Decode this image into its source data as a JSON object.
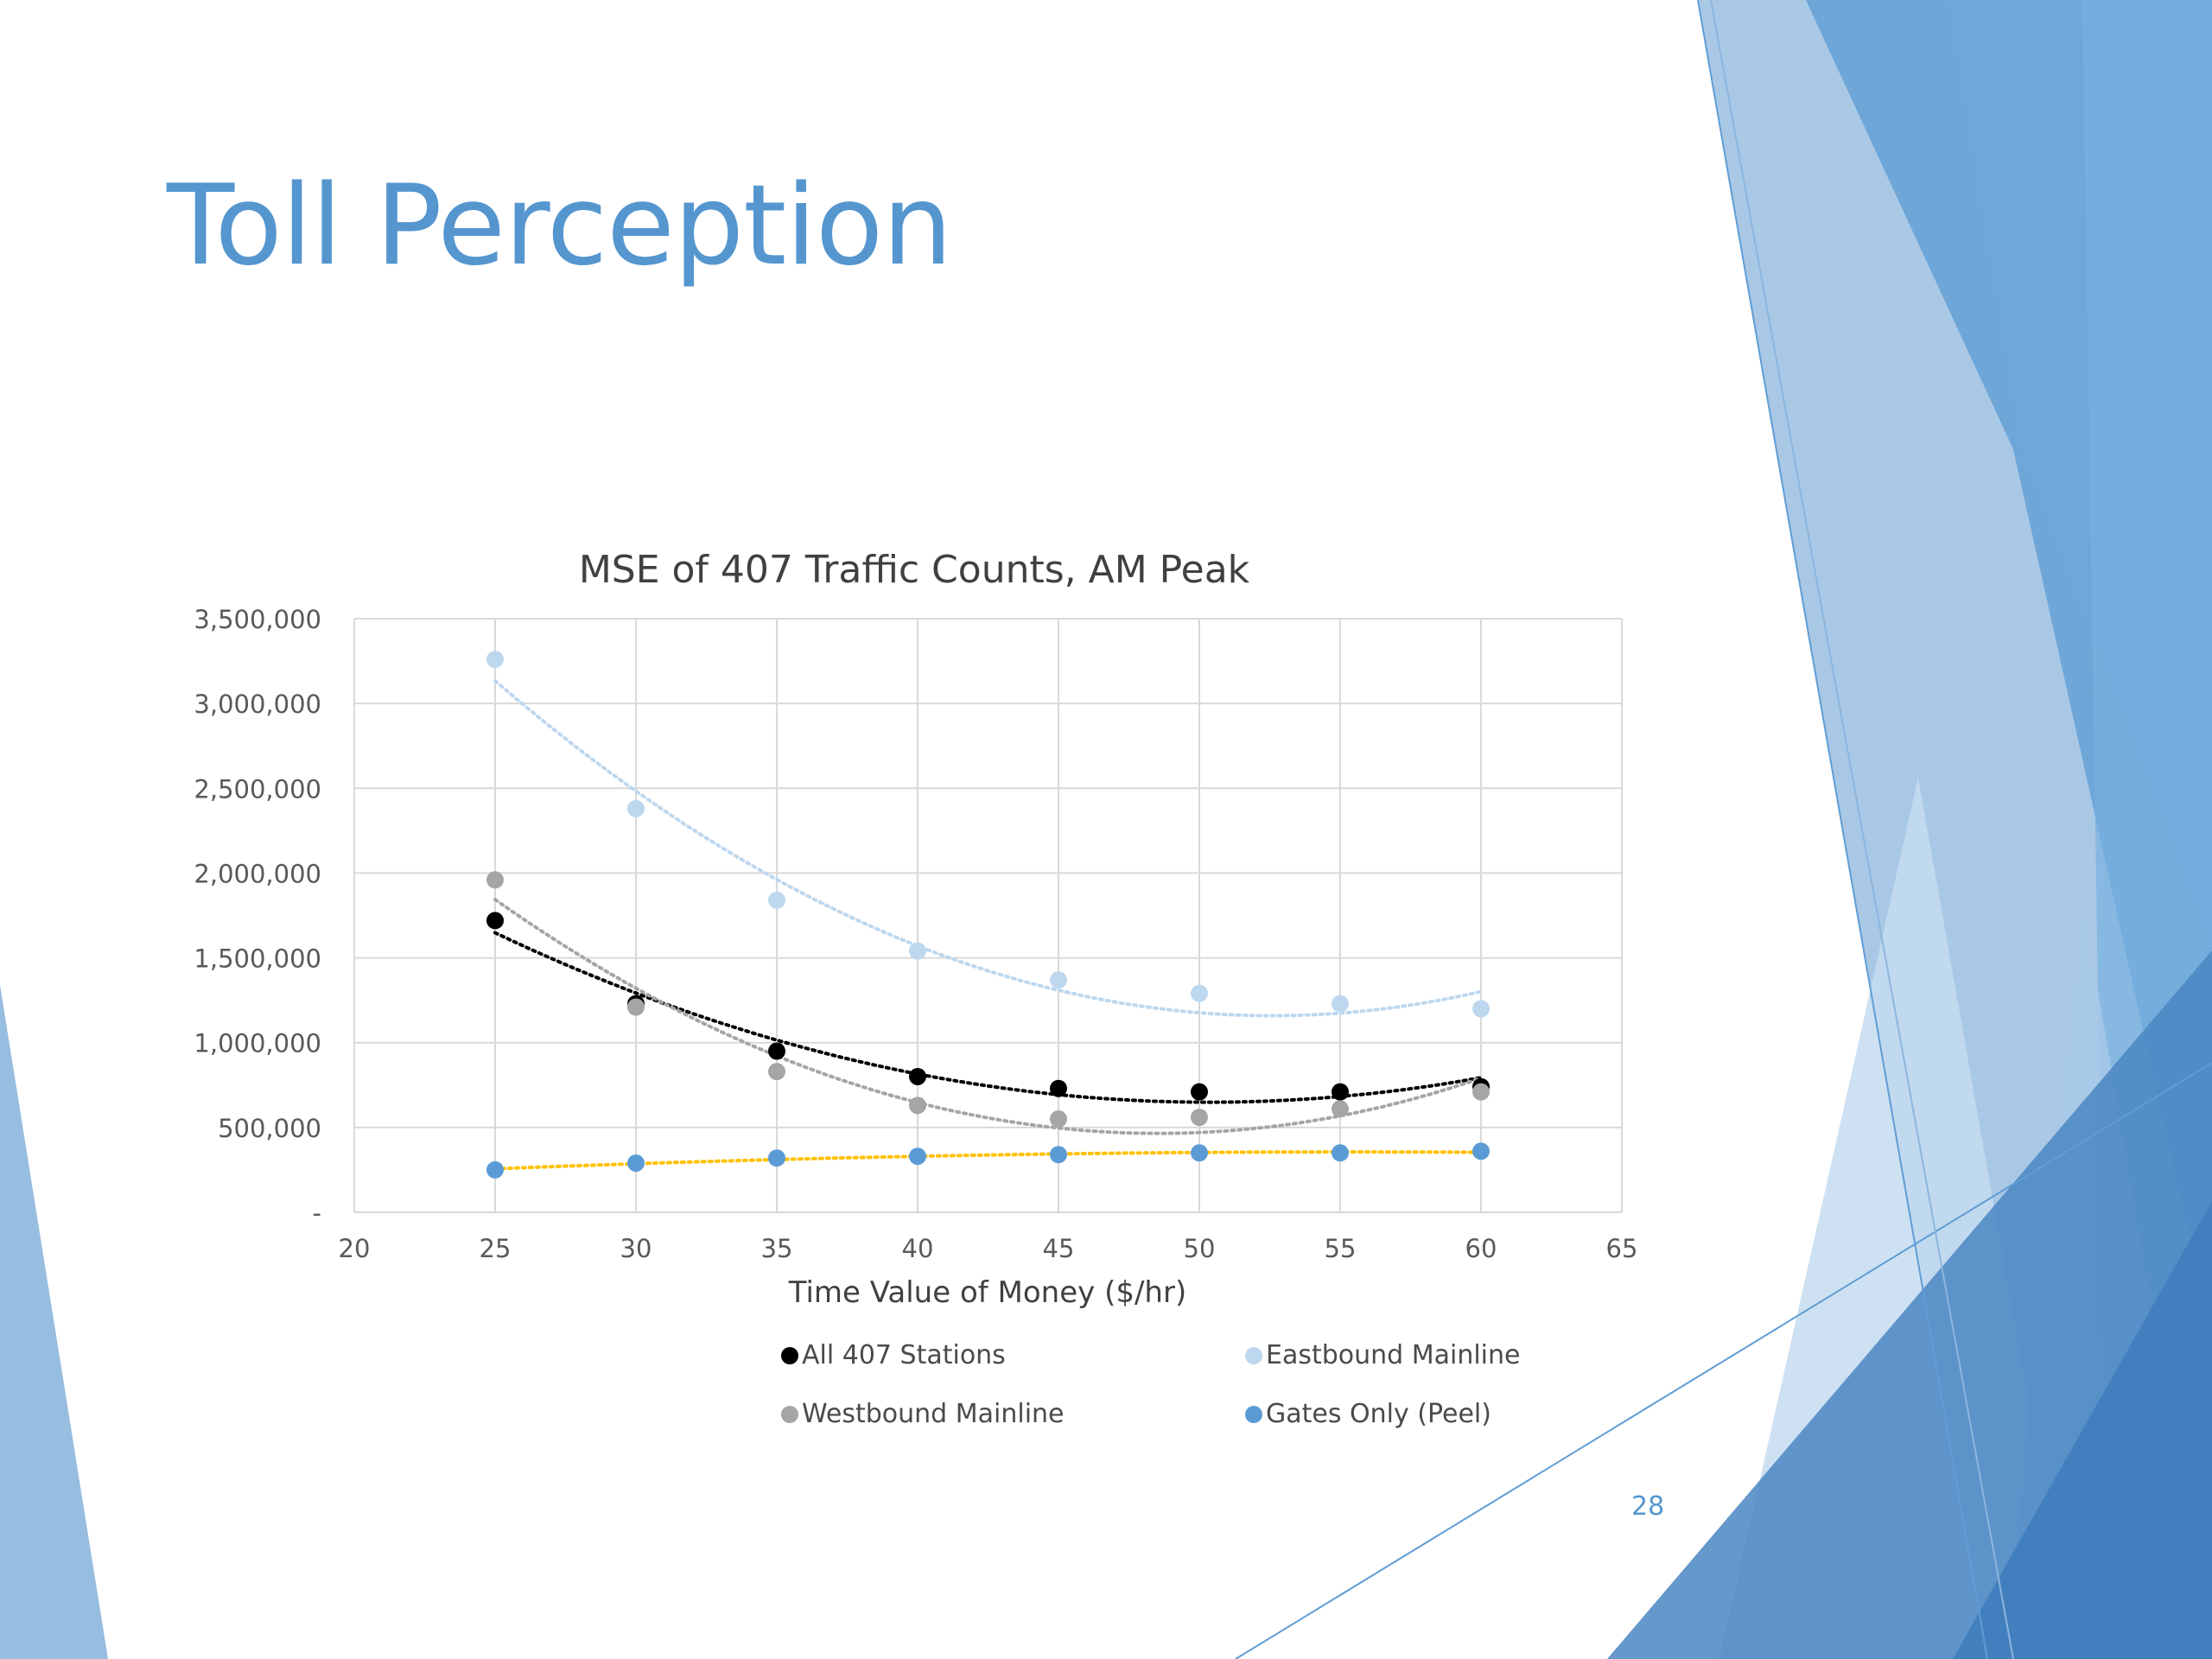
{
  "slide": {
    "title": "Toll Perception",
    "page_number": "28"
  },
  "colors": {
    "title": "#5596cf",
    "decor_light": "#c5dcf0",
    "decor_mid": "#8cb6de",
    "decor_dark": "#4a86c2"
  },
  "chart_data": {
    "type": "scatter",
    "title": "MSE of 407 Traffic Counts, AM Peak",
    "xlabel": "Time Value of Money ($/hr)",
    "ylabel": "",
    "xlim": [
      20,
      65
    ],
    "ylim": [
      0,
      3500000
    ],
    "x_ticks": [
      "20",
      "25",
      "30",
      "35",
      "40",
      "45",
      "50",
      "55",
      "60",
      "65"
    ],
    "y_ticks": [
      "-",
      "500,000",
      "1,000,000",
      "1,500,000",
      "2,000,000",
      "2,500,000",
      "3,000,000",
      "3,500,000"
    ],
    "grid": true,
    "trendlines": "polynomial (dotted)",
    "legend_position": "bottom",
    "series": [
      {
        "name": "All 407 Stations",
        "color": "#000000",
        "trend_color": "#000000",
        "x": [
          25,
          30,
          35,
          40,
          45,
          50,
          55,
          60
        ],
        "y": [
          1720000,
          1230000,
          950000,
          800000,
          730000,
          710000,
          710000,
          740000
        ]
      },
      {
        "name": "Eastbound Mainline",
        "color": "#bdd7ee",
        "trend_color": "#bdd7ee",
        "x": [
          25,
          30,
          35,
          40,
          45,
          50,
          55,
          60
        ],
        "y": [
          3260000,
          2380000,
          1840000,
          1540000,
          1370000,
          1290000,
          1230000,
          1200000
        ]
      },
      {
        "name": "Westbound Mainline",
        "color": "#a5a5a5",
        "trend_color": "#a5a5a5",
        "x": [
          25,
          30,
          35,
          40,
          45,
          50,
          55,
          60
        ],
        "y": [
          1960000,
          1210000,
          830000,
          630000,
          550000,
          560000,
          610000,
          710000
        ]
      },
      {
        "name": "Gates Only (Peel)",
        "color": "#5b9bd5",
        "trend_color": "#ffc000",
        "x": [
          25,
          30,
          35,
          40,
          45,
          50,
          55,
          60
        ],
        "y": [
          250000,
          290000,
          320000,
          330000,
          340000,
          350000,
          350000,
          360000
        ]
      }
    ]
  }
}
